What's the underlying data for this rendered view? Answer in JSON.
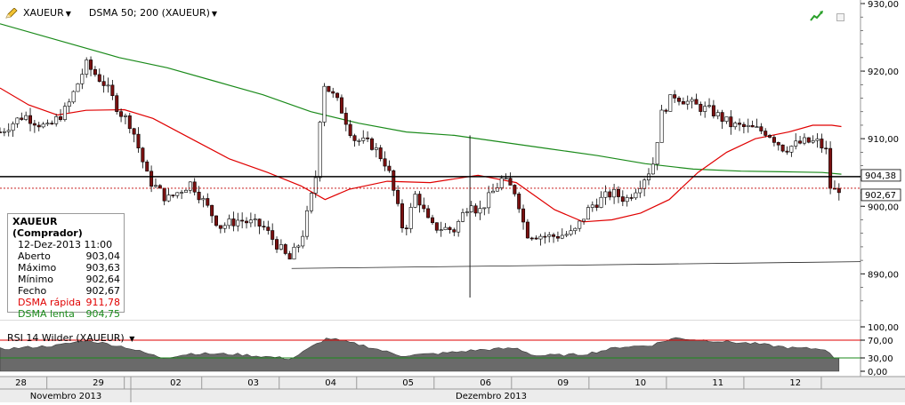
{
  "toolbar": {
    "symbol": "XAUEUR",
    "indicator": "DSMA 50; 200 (XAUEUR)"
  },
  "rsi_panel": {
    "label": "RSI 14 Wilder (XAUEUR)"
  },
  "info_box": {
    "title": "XAUEUR (Comprador)",
    "datetime": "12-Dez-2013 11:00",
    "rows": [
      {
        "label": "Aberto",
        "value": "903,04"
      },
      {
        "label": "Máximo",
        "value": "903,63"
      },
      {
        "label": "Mínimo",
        "value": "902,64"
      },
      {
        "label": "Fecho",
        "value": "902,67"
      },
      {
        "label": "DSMA rápida",
        "value": "911,78"
      },
      {
        "label": "DSMA lenta",
        "value": "904,75"
      }
    ]
  },
  "colors": {
    "fast_ma": "#e00000",
    "slow_ma": "#1a8a1a",
    "candle_up": "#ffffff",
    "candle_down": "#7a1010",
    "rsi_fill": "#6a6a6a",
    "rsi_upper": "#e00000",
    "rsi_lower": "#1a8a1a"
  },
  "chart_data": [
    {
      "type": "candlestick",
      "ylim": [
        884,
        930
      ],
      "y_ticks": [
        "930,00",
        "920,00",
        "910,00",
        "900,00",
        "890,00"
      ],
      "y_tick_values": [
        930,
        920,
        910,
        900,
        890
      ],
      "price_labels": [
        {
          "text": "904,38",
          "value": 904.38
        },
        {
          "text": "902,67",
          "value": 902.67
        }
      ],
      "horizontal_lines": [
        {
          "value": 904.38,
          "style": "solid"
        },
        {
          "value": 902.67,
          "style": "dotted"
        }
      ],
      "trendline": [
        {
          "i": 0,
          "v": 890.8
        },
        {
          "i": 1,
          "v": 891.8
        }
      ],
      "x_day_labels": [
        "28",
        "29",
        "02",
        "03",
        "04",
        "05",
        "06",
        "09",
        "10",
        "11",
        "12"
      ],
      "x_month_labels": [
        "Novembro 2013",
        "Dezembro 2013"
      ],
      "key_points": [
        {
          "d": 0,
          "v": 911
        },
        {
          "d": 0.5,
          "v": 913.5
        },
        {
          "d": 1.0,
          "v": 911.5
        },
        {
          "d": 1.4,
          "v": 914.5
        },
        {
          "d": 1.8,
          "v": 921
        },
        {
          "d": 2.2,
          "v": 918
        },
        {
          "d": 2.5,
          "v": 914
        },
        {
          "d": 2.75,
          "v": 912
        },
        {
          "d": 3.1,
          "v": 904
        },
        {
          "d": 3.5,
          "v": 901
        },
        {
          "d": 4.0,
          "v": 903.5
        },
        {
          "d": 4.6,
          "v": 897
        },
        {
          "d": 5.0,
          "v": 898
        },
        {
          "d": 5.5,
          "v": 897
        },
        {
          "d": 6.05,
          "v": 892
        },
        {
          "d": 6.3,
          "v": 895
        },
        {
          "d": 6.6,
          "v": 904
        },
        {
          "d": 6.75,
          "v": 918.5
        },
        {
          "d": 7.1,
          "v": 915
        },
        {
          "d": 7.4,
          "v": 910
        },
        {
          "d": 7.8,
          "v": 909
        },
        {
          "d": 8.1,
          "v": 906
        },
        {
          "d": 8.45,
          "v": 896
        },
        {
          "d": 8.7,
          "v": 902
        },
        {
          "d": 9.0,
          "v": 897
        },
        {
          "d": 9.5,
          "v": 896.5
        },
        {
          "d": 9.85,
          "v": 901
        },
        {
          "d": 10.0,
          "v": 899
        },
        {
          "d": 10.5,
          "v": 904
        },
        {
          "d": 10.8,
          "v": 902
        },
        {
          "d": 11.0,
          "v": 896
        },
        {
          "d": 11.5,
          "v": 895.5
        },
        {
          "d": 12.0,
          "v": 896
        },
        {
          "d": 12.35,
          "v": 900
        },
        {
          "d": 12.8,
          "v": 902
        },
        {
          "d": 13.1,
          "v": 901
        },
        {
          "d": 13.4,
          "v": 903.5
        },
        {
          "d": 13.65,
          "v": 906
        },
        {
          "d": 13.85,
          "v": 914
        },
        {
          "d": 14.1,
          "v": 916.5
        },
        {
          "d": 14.5,
          "v": 915
        },
        {
          "d": 14.9,
          "v": 914
        },
        {
          "d": 15.3,
          "v": 912
        },
        {
          "d": 15.7,
          "v": 911.5
        },
        {
          "d": 16.05,
          "v": 911
        },
        {
          "d": 16.4,
          "v": 908.5
        },
        {
          "d": 16.8,
          "v": 909.5
        },
        {
          "d": 17.1,
          "v": 909.5
        },
        {
          "d": 17.3,
          "v": 908
        },
        {
          "d": 17.38,
          "v": 902
        },
        {
          "d": 17.55,
          "v": 902.67
        }
      ],
      "fast_ma": [
        {
          "d": 0,
          "v": 917.5
        },
        {
          "d": 0.6,
          "v": 915
        },
        {
          "d": 1.2,
          "v": 913.5
        },
        {
          "d": 1.8,
          "v": 914.2
        },
        {
          "d": 2.6,
          "v": 914.3
        },
        {
          "d": 3.2,
          "v": 913
        },
        {
          "d": 4.0,
          "v": 910
        },
        {
          "d": 4.8,
          "v": 907
        },
        {
          "d": 5.6,
          "v": 905
        },
        {
          "d": 6.3,
          "v": 903
        },
        {
          "d": 6.8,
          "v": 901
        },
        {
          "d": 7.3,
          "v": 902.5
        },
        {
          "d": 8.1,
          "v": 903.7
        },
        {
          "d": 9.0,
          "v": 903.5
        },
        {
          "d": 10.0,
          "v": 904.6
        },
        {
          "d": 10.8,
          "v": 903.5
        },
        {
          "d": 11.6,
          "v": 899.5
        },
        {
          "d": 12.2,
          "v": 897.7
        },
        {
          "d": 12.8,
          "v": 898
        },
        {
          "d": 13.4,
          "v": 899
        },
        {
          "d": 14.0,
          "v": 901
        },
        {
          "d": 14.6,
          "v": 905
        },
        {
          "d": 15.2,
          "v": 908
        },
        {
          "d": 15.8,
          "v": 910
        },
        {
          "d": 16.5,
          "v": 911
        },
        {
          "d": 17.0,
          "v": 912
        },
        {
          "d": 17.4,
          "v": 912
        },
        {
          "d": 17.6,
          "v": 911.8
        }
      ],
      "slow_ma": [
        {
          "d": 0,
          "v": 927
        },
        {
          "d": 1.5,
          "v": 924
        },
        {
          "d": 2.5,
          "v": 922
        },
        {
          "d": 3.5,
          "v": 920.5
        },
        {
          "d": 4.5,
          "v": 918.5
        },
        {
          "d": 5.5,
          "v": 916.5
        },
        {
          "d": 6.5,
          "v": 914
        },
        {
          "d": 7.5,
          "v": 912.3
        },
        {
          "d": 8.5,
          "v": 911
        },
        {
          "d": 9.5,
          "v": 910.5
        },
        {
          "d": 10.5,
          "v": 909.5
        },
        {
          "d": 11.5,
          "v": 908.5
        },
        {
          "d": 12.5,
          "v": 907.5
        },
        {
          "d": 13.5,
          "v": 906.3
        },
        {
          "d": 14.5,
          "v": 905.5
        },
        {
          "d": 15.5,
          "v": 905.2
        },
        {
          "d": 16.5,
          "v": 905.1
        },
        {
          "d": 17.2,
          "v": 905
        },
        {
          "d": 17.6,
          "v": 904.75
        }
      ]
    },
    {
      "type": "area",
      "title": "RSI 14 Wilder (XAUEUR)",
      "ylim": [
        0,
        100
      ],
      "y_ticks": [
        "100,00",
        "70,00",
        "30,00",
        "0,00"
      ],
      "y_tick_values": [
        100,
        70,
        30,
        0
      ],
      "levels": [
        70,
        30
      ],
      "series": [
        {
          "d": 0,
          "v": 50
        },
        {
          "d": 1.2,
          "v": 58
        },
        {
          "d": 1.8,
          "v": 70
        },
        {
          "d": 2.6,
          "v": 55
        },
        {
          "d": 3.4,
          "v": 30
        },
        {
          "d": 4.0,
          "v": 40
        },
        {
          "d": 5.0,
          "v": 38
        },
        {
          "d": 6.1,
          "v": 28
        },
        {
          "d": 6.6,
          "v": 60
        },
        {
          "d": 6.85,
          "v": 75
        },
        {
          "d": 7.6,
          "v": 58
        },
        {
          "d": 8.4,
          "v": 35
        },
        {
          "d": 9.2,
          "v": 40
        },
        {
          "d": 10.0,
          "v": 48
        },
        {
          "d": 10.8,
          "v": 52
        },
        {
          "d": 11.2,
          "v": 35
        },
        {
          "d": 12.2,
          "v": 38
        },
        {
          "d": 13.0,
          "v": 55
        },
        {
          "d": 13.6,
          "v": 58
        },
        {
          "d": 14.1,
          "v": 75
        },
        {
          "d": 15.0,
          "v": 68
        },
        {
          "d": 15.8,
          "v": 62
        },
        {
          "d": 16.6,
          "v": 52
        },
        {
          "d": 17.3,
          "v": 50
        },
        {
          "d": 17.4,
          "v": 30
        },
        {
          "d": 17.6,
          "v": 32
        }
      ]
    }
  ]
}
